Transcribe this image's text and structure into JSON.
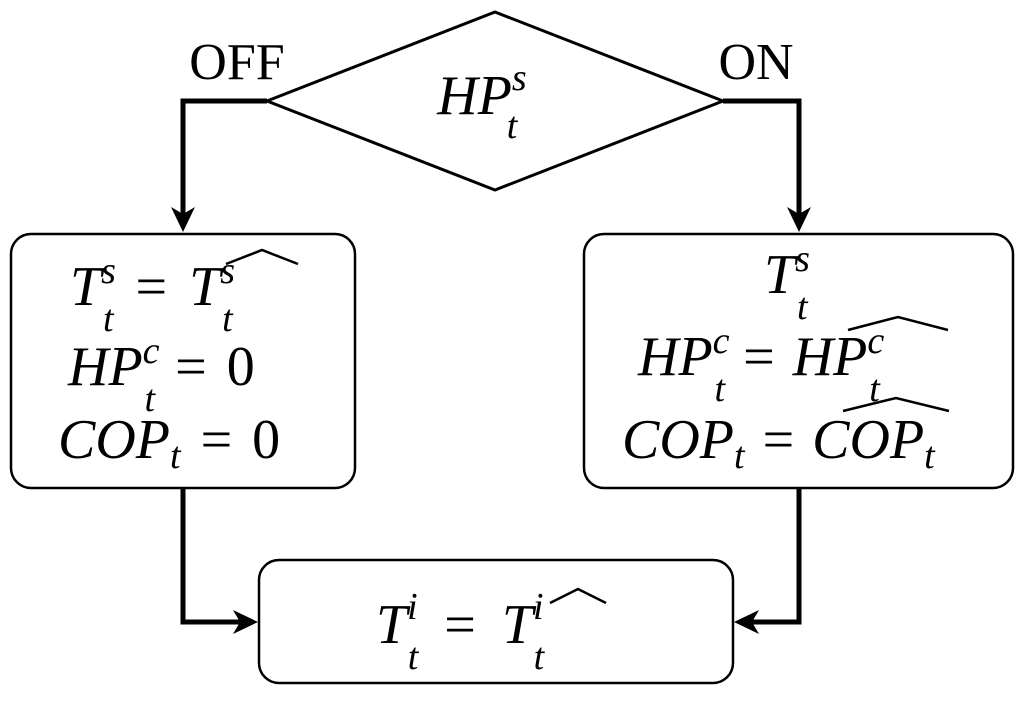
{
  "decision": {
    "base": "HP",
    "sup": "s",
    "sub": "t"
  },
  "branches": {
    "off_label": "OFF",
    "on_label": "ON"
  },
  "off_box": {
    "line1": {
      "lhs_base": "T",
      "lhs_sup": "s",
      "lhs_sub": "t",
      "eq": "=",
      "rhs_base": "T",
      "rhs_sup": "s",
      "rhs_sub": "t",
      "hat": "^"
    },
    "line2": {
      "lhs_base": "HP",
      "lhs_sup": "c",
      "lhs_sub": "t",
      "eq": "=",
      "value": "0"
    },
    "line3": {
      "lhs_base": "COP",
      "lhs_sub": "t",
      "eq": "=",
      "value": "0"
    }
  },
  "on_box": {
    "line1": {
      "base": "T",
      "sup": "s",
      "sub": "t"
    },
    "line2": {
      "lhs_base": "HP",
      "lhs_sup": "c",
      "lhs_sub": "t",
      "eq": "=",
      "rhs_base": "HP",
      "rhs_sup": "c",
      "rhs_sub": "t",
      "hat": "^"
    },
    "line3": {
      "lhs_base": "COP",
      "lhs_sub": "t",
      "eq": "=",
      "rhs_base": "COP",
      "rhs_sub": "t",
      "hat": "^"
    }
  },
  "result_box": {
    "lhs_base": "T",
    "lhs_sup": "i",
    "lhs_sub": "t",
    "eq": "=",
    "rhs_base": "T",
    "rhs_sup": "i",
    "rhs_sub": "t",
    "hat": "^"
  },
  "colors": {
    "stroke": "#000000",
    "background": "#ffffff"
  }
}
